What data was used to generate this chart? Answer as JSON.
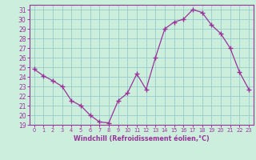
{
  "x": [
    0,
    1,
    2,
    3,
    4,
    5,
    6,
    7,
    8,
    9,
    10,
    11,
    12,
    13,
    14,
    15,
    16,
    17,
    18,
    19,
    20,
    21,
    22,
    23
  ],
  "y": [
    24.8,
    24.1,
    23.6,
    23.0,
    21.5,
    21.0,
    20.0,
    19.3,
    19.2,
    21.5,
    22.3,
    24.3,
    22.7,
    26.0,
    29.0,
    29.7,
    30.0,
    31.0,
    30.7,
    29.4,
    28.5,
    27.0,
    24.5,
    22.7
  ],
  "line_color": "#993399",
  "marker": "+",
  "marker_size": 4,
  "bg_color": "#cceedd",
  "grid_color": "#99cccc",
  "xlabel": "Windchill (Refroidissement éolien,°C)",
  "xlabel_color": "#993399",
  "tick_color": "#993399",
  "spine_color": "#993399",
  "ylim": [
    19,
    31.5
  ],
  "yticks": [
    19,
    20,
    21,
    22,
    23,
    24,
    25,
    26,
    27,
    28,
    29,
    30,
    31
  ],
  "xticks": [
    0,
    1,
    2,
    3,
    4,
    5,
    6,
    7,
    8,
    9,
    10,
    11,
    12,
    13,
    14,
    15,
    16,
    17,
    18,
    19,
    20,
    21,
    22,
    23
  ],
  "xlim": [
    -0.5,
    23.5
  ]
}
